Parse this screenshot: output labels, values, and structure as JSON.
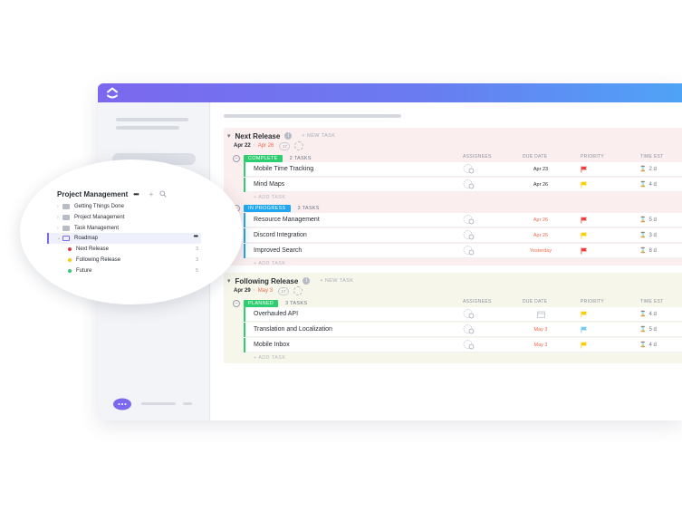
{
  "colors": {
    "brand_start": "#7b68ee",
    "brand_end": "#4fa3f7",
    "complete": "#2ecd6f",
    "in_progress": "#1fa7f1",
    "planned": "#2ecd6f",
    "flag_red": "#f23b3b",
    "flag_yellow": "#ffcc00",
    "flag_blue": "#6fc8f5",
    "overdue": "#f06a4c"
  },
  "sidebar_panel": {
    "title": "Project Management",
    "more": "•••",
    "add": "+",
    "items": [
      {
        "label": "Getting Things Done"
      },
      {
        "label": "Project Management"
      },
      {
        "label": "Task Management"
      }
    ],
    "roadmap": {
      "label": "Roadmap",
      "more": "•••"
    },
    "lists": [
      {
        "label": "Next Release",
        "count": "3",
        "color": "#e5383b"
      },
      {
        "label": "Following Release",
        "count": "3",
        "color": "#ffcc00"
      },
      {
        "label": "Future",
        "count": "5",
        "color": "#2ecd6f"
      }
    ]
  },
  "columns": {
    "assignees": "ASSIGNEES",
    "due_date": "DUE DATE",
    "priority": "PRIORITY",
    "time_est": "TIME EST"
  },
  "groups": [
    {
      "title": "Next Release",
      "new_task": "+ NEW TASK",
      "start": "Apr 22",
      "sep": "›",
      "end": "Apr 26",
      "ring": "17",
      "statuses": [
        {
          "label": "COMPLETE",
          "count": "2 TASKS",
          "add_task": "+ ADD TASK",
          "tasks": [
            {
              "name": "Mobile Time Tracking",
              "due": "Apr 23",
              "priority": "red",
              "est": "2 d"
            },
            {
              "name": "Mind Maps",
              "due": "Apr 26",
              "priority": "yellow",
              "est": "4 d"
            }
          ]
        },
        {
          "label": "IN PROGRESS",
          "count": "3 TASKS",
          "add_task": "+ ADD TASK",
          "tasks": [
            {
              "name": "Resource Management",
              "due": "Apr 26",
              "priority": "red",
              "est": "5 d"
            },
            {
              "name": "Discord Integration",
              "due": "Apr 26",
              "priority": "yellow",
              "est": "3 d"
            },
            {
              "name": "Improved Search",
              "due": "Yesterday",
              "priority": "red",
              "est": "8 d"
            }
          ]
        }
      ]
    },
    {
      "title": "Following Release",
      "new_task": "+ NEW TASK",
      "start": "Apr 29",
      "sep": "›",
      "end": "May 3",
      "ring": "17",
      "statuses": [
        {
          "label": "PLANNED",
          "count": "3 TASKS",
          "add_task": "+ ADD TASK",
          "tasks": [
            {
              "name": "Overhauled API",
              "due": "",
              "priority": "yellow",
              "est": "4 d"
            },
            {
              "name": "Translation and Localization",
              "due": "May 3",
              "priority": "blue",
              "est": "5 d"
            },
            {
              "name": "Mobile Inbox",
              "due": "May 3",
              "priority": "yellow",
              "est": "4 d"
            }
          ]
        }
      ]
    }
  ]
}
